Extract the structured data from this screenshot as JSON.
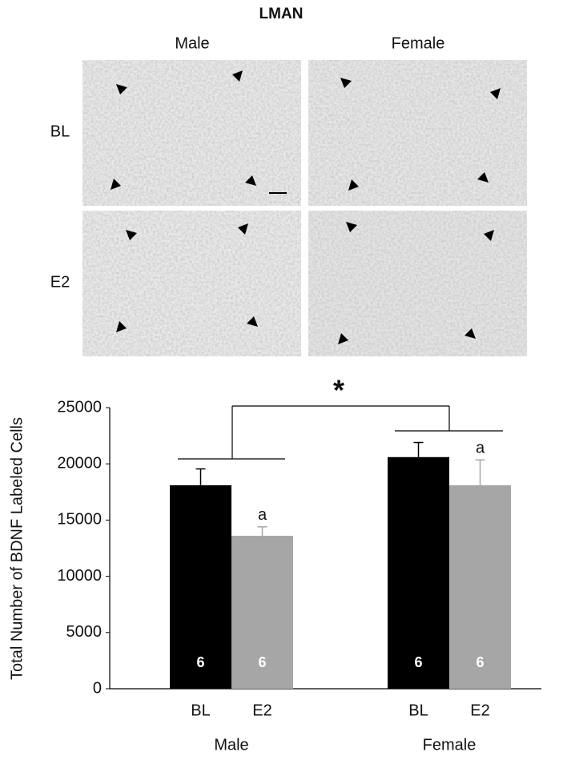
{
  "figure": {
    "title": "LMAN",
    "columns": [
      "Male",
      "Female"
    ],
    "rows": [
      "BL",
      "E2"
    ]
  },
  "chart_data": {
    "type": "bar",
    "ylabel": "Total Number of BDNF Labeled Cells",
    "categories": [
      "Male",
      "Female"
    ],
    "series": [
      {
        "name": "BL",
        "color": "#000000",
        "values": [
          18100,
          20600
        ],
        "errors": [
          1450,
          1300
        ],
        "n": [
          6,
          6
        ],
        "n_color": "#ffffff"
      },
      {
        "name": "E2",
        "color": "#a6a6a6",
        "values": [
          13600,
          18100
        ],
        "errors": [
          800,
          2250
        ],
        "n": [
          6,
          6
        ],
        "n_color": "#ffffff",
        "annotations": [
          "a",
          "a"
        ]
      }
    ],
    "significance": "*",
    "ylim": [
      0,
      25000
    ],
    "yticks": [
      0,
      5000,
      10000,
      15000,
      20000,
      25000
    ],
    "grid": false
  }
}
